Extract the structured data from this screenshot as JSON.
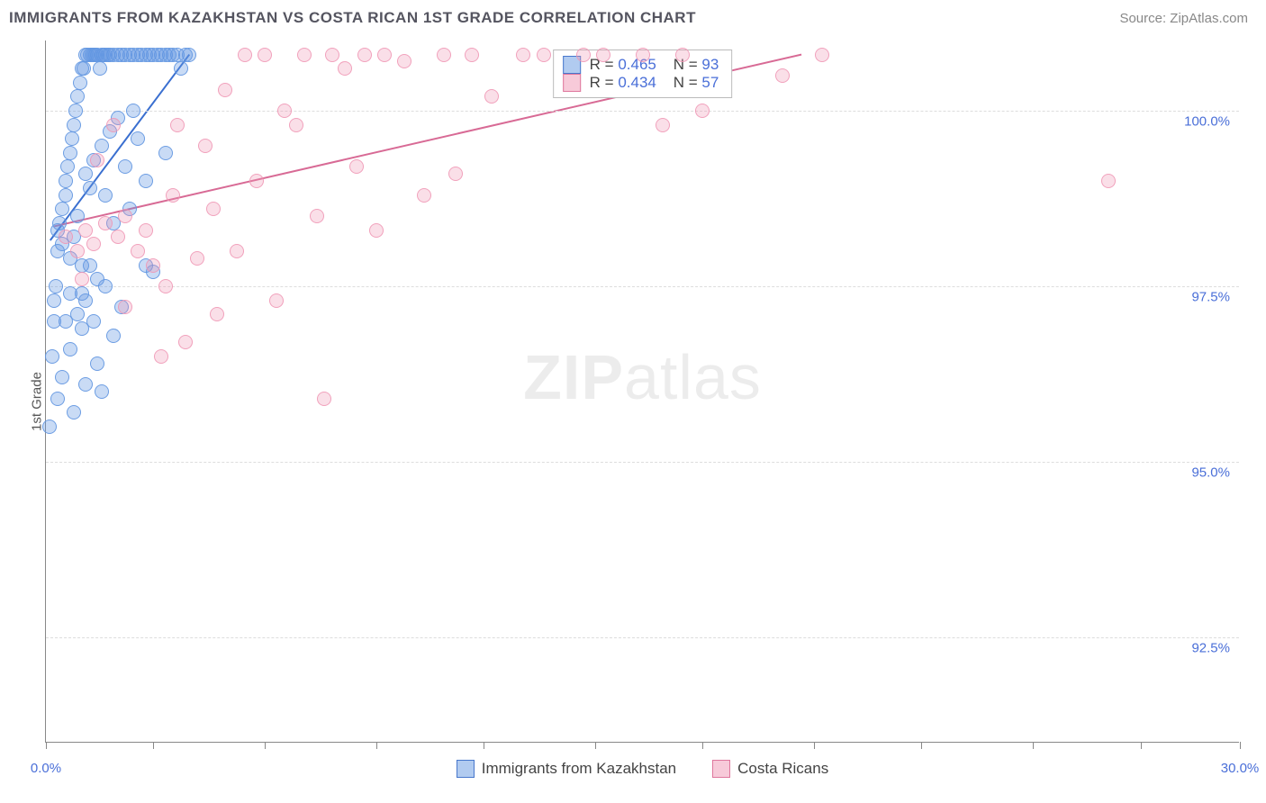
{
  "title": "IMMIGRANTS FROM KAZAKHSTAN VS COSTA RICAN 1ST GRADE CORRELATION CHART",
  "source": "Source: ZipAtlas.com",
  "ylabel": "1st Grade",
  "watermark_bold": "ZIP",
  "watermark_rest": "atlas",
  "chart": {
    "type": "scatter",
    "xlim": [
      0,
      30
    ],
    "ylim": [
      91.0,
      101.0
    ],
    "x_ticks": [
      0,
      2.7,
      5.5,
      8.3,
      11.0,
      13.8,
      16.5,
      19.3,
      22.0,
      24.8,
      27.5,
      30
    ],
    "x_tick_labels": {
      "0": "0.0%",
      "30": "30.0%"
    },
    "y_ticks": [
      92.5,
      95.0,
      97.5,
      100.0
    ],
    "y_tick_labels": [
      "92.5%",
      "95.0%",
      "97.5%",
      "100.0%"
    ],
    "background_color": "#ffffff",
    "grid_color": "#dddddd",
    "axis_color": "#888888",
    "marker_radius": 8,
    "series": [
      {
        "name": "Immigrants from Kazakhstan",
        "color_fill": "rgba(99,151,225,0.35)",
        "color_stroke": "#5a8fdc",
        "R": "0.465",
        "N": "93",
        "trend": {
          "x1": 0.1,
          "y1": 98.15,
          "x2": 3.6,
          "y2": 100.8,
          "color": "#3a6fd0",
          "width": 2
        },
        "points": [
          [
            0.1,
            95.5
          ],
          [
            0.15,
            96.5
          ],
          [
            0.2,
            97.0
          ],
          [
            0.2,
            97.3
          ],
          [
            0.25,
            97.5
          ],
          [
            0.3,
            98.0
          ],
          [
            0.3,
            98.3
          ],
          [
            0.35,
            98.4
          ],
          [
            0.4,
            98.6
          ],
          [
            0.4,
            98.1
          ],
          [
            0.5,
            98.8
          ],
          [
            0.5,
            99.0
          ],
          [
            0.55,
            99.2
          ],
          [
            0.6,
            99.4
          ],
          [
            0.6,
            97.9
          ],
          [
            0.6,
            97.4
          ],
          [
            0.65,
            99.6
          ],
          [
            0.7,
            99.8
          ],
          [
            0.7,
            98.2
          ],
          [
            0.75,
            100.0
          ],
          [
            0.8,
            100.2
          ],
          [
            0.8,
            98.5
          ],
          [
            0.85,
            100.4
          ],
          [
            0.9,
            100.6
          ],
          [
            0.9,
            97.8
          ],
          [
            0.95,
            100.6
          ],
          [
            1.0,
            100.8
          ],
          [
            1.0,
            99.1
          ],
          [
            1.05,
            100.8
          ],
          [
            1.1,
            100.8
          ],
          [
            1.1,
            98.9
          ],
          [
            1.15,
            100.8
          ],
          [
            1.2,
            100.8
          ],
          [
            1.2,
            99.3
          ],
          [
            1.25,
            100.8
          ],
          [
            1.3,
            100.8
          ],
          [
            1.3,
            97.6
          ],
          [
            1.35,
            100.6
          ],
          [
            1.4,
            100.8
          ],
          [
            1.4,
            99.5
          ],
          [
            1.45,
            100.8
          ],
          [
            1.5,
            100.8
          ],
          [
            1.5,
            98.8
          ],
          [
            1.55,
            100.8
          ],
          [
            1.6,
            100.8
          ],
          [
            1.6,
            99.7
          ],
          [
            1.7,
            100.8
          ],
          [
            1.7,
            98.4
          ],
          [
            1.8,
            100.8
          ],
          [
            1.8,
            99.9
          ],
          [
            1.9,
            100.8
          ],
          [
            1.9,
            97.2
          ],
          [
            2.0,
            100.8
          ],
          [
            2.0,
            99.2
          ],
          [
            2.1,
            100.8
          ],
          [
            2.1,
            98.6
          ],
          [
            2.2,
            100.8
          ],
          [
            2.2,
            100.0
          ],
          [
            2.3,
            100.8
          ],
          [
            2.3,
            99.6
          ],
          [
            2.4,
            100.8
          ],
          [
            2.5,
            100.8
          ],
          [
            2.5,
            99.0
          ],
          [
            2.6,
            100.8
          ],
          [
            2.7,
            100.8
          ],
          [
            2.7,
            97.7
          ],
          [
            2.8,
            100.8
          ],
          [
            2.9,
            100.8
          ],
          [
            3.0,
            100.8
          ],
          [
            3.0,
            99.4
          ],
          [
            3.1,
            100.8
          ],
          [
            3.2,
            100.8
          ],
          [
            3.3,
            100.8
          ],
          [
            3.4,
            100.6
          ],
          [
            3.5,
            100.8
          ],
          [
            3.6,
            100.8
          ],
          [
            0.5,
            97.0
          ],
          [
            0.6,
            96.6
          ],
          [
            0.8,
            97.1
          ],
          [
            0.9,
            96.9
          ],
          [
            1.0,
            97.3
          ],
          [
            1.2,
            97.0
          ],
          [
            1.3,
            96.4
          ],
          [
            1.5,
            97.5
          ],
          [
            1.7,
            96.8
          ],
          [
            1.0,
            96.1
          ],
          [
            1.4,
            96.0
          ],
          [
            0.4,
            96.2
          ],
          [
            0.3,
            95.9
          ],
          [
            0.7,
            95.7
          ],
          [
            0.9,
            97.4
          ],
          [
            1.1,
            97.8
          ],
          [
            2.5,
            97.8
          ]
        ]
      },
      {
        "name": "Costa Ricans",
        "color_fill": "rgba(240,150,180,0.30)",
        "color_stroke": "#e994b3",
        "R": "0.434",
        "N": "57",
        "trend": {
          "x1": 0.2,
          "y1": 98.35,
          "x2": 19.0,
          "y2": 100.8,
          "color": "#d86a95",
          "width": 2
        },
        "points": [
          [
            0.5,
            98.2
          ],
          [
            0.8,
            98.0
          ],
          [
            1.0,
            98.3
          ],
          [
            1.2,
            98.1
          ],
          [
            1.5,
            98.4
          ],
          [
            1.8,
            98.2
          ],
          [
            2.0,
            98.5
          ],
          [
            2.3,
            98.0
          ],
          [
            2.5,
            98.3
          ],
          [
            2.9,
            96.5
          ],
          [
            3.0,
            97.5
          ],
          [
            3.2,
            98.8
          ],
          [
            3.5,
            96.7
          ],
          [
            3.8,
            97.9
          ],
          [
            4.0,
            99.5
          ],
          [
            4.2,
            98.6
          ],
          [
            4.5,
            100.3
          ],
          [
            4.8,
            98.0
          ],
          [
            5.0,
            100.8
          ],
          [
            5.3,
            99.0
          ],
          [
            5.5,
            100.8
          ],
          [
            5.8,
            97.3
          ],
          [
            6.0,
            100.0
          ],
          [
            6.3,
            99.8
          ],
          [
            6.5,
            100.8
          ],
          [
            6.8,
            98.5
          ],
          [
            7.0,
            95.9
          ],
          [
            7.2,
            100.8
          ],
          [
            7.5,
            100.6
          ],
          [
            7.8,
            99.2
          ],
          [
            8.0,
            100.8
          ],
          [
            8.3,
            98.3
          ],
          [
            8.5,
            100.8
          ],
          [
            9.0,
            100.7
          ],
          [
            9.5,
            98.8
          ],
          [
            10.0,
            100.8
          ],
          [
            10.3,
            99.1
          ],
          [
            10.7,
            100.8
          ],
          [
            11.2,
            100.2
          ],
          [
            12.0,
            100.8
          ],
          [
            12.5,
            100.8
          ],
          [
            13.5,
            100.8
          ],
          [
            14.0,
            100.8
          ],
          [
            15.0,
            100.8
          ],
          [
            15.5,
            99.8
          ],
          [
            16.0,
            100.8
          ],
          [
            16.5,
            100.0
          ],
          [
            18.5,
            100.5
          ],
          [
            19.5,
            100.8
          ],
          [
            26.7,
            99.0
          ],
          [
            2.0,
            97.2
          ],
          [
            2.7,
            97.8
          ],
          [
            3.3,
            99.8
          ],
          [
            4.3,
            97.1
          ],
          [
            1.3,
            99.3
          ],
          [
            1.7,
            99.8
          ],
          [
            0.9,
            97.6
          ]
        ]
      }
    ]
  },
  "legend_bottom": [
    {
      "swatch": "blue",
      "label": "Immigrants from Kazakhstan"
    },
    {
      "swatch": "pink",
      "label": "Costa Ricans"
    }
  ]
}
